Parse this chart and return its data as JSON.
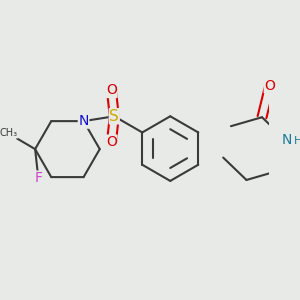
{
  "bg": "#e8eae8",
  "bond_color": "#3a3a3a",
  "bond_lw": 1.5,
  "colors": {
    "N": "#1a7a9a",
    "N_pip": "#1010cc",
    "O": "#dd0000",
    "S": "#ccaa00",
    "F": "#cc44cc",
    "C": "#3a3a3a"
  },
  "figsize": [
    3.0,
    3.0
  ],
  "dpi": 100
}
